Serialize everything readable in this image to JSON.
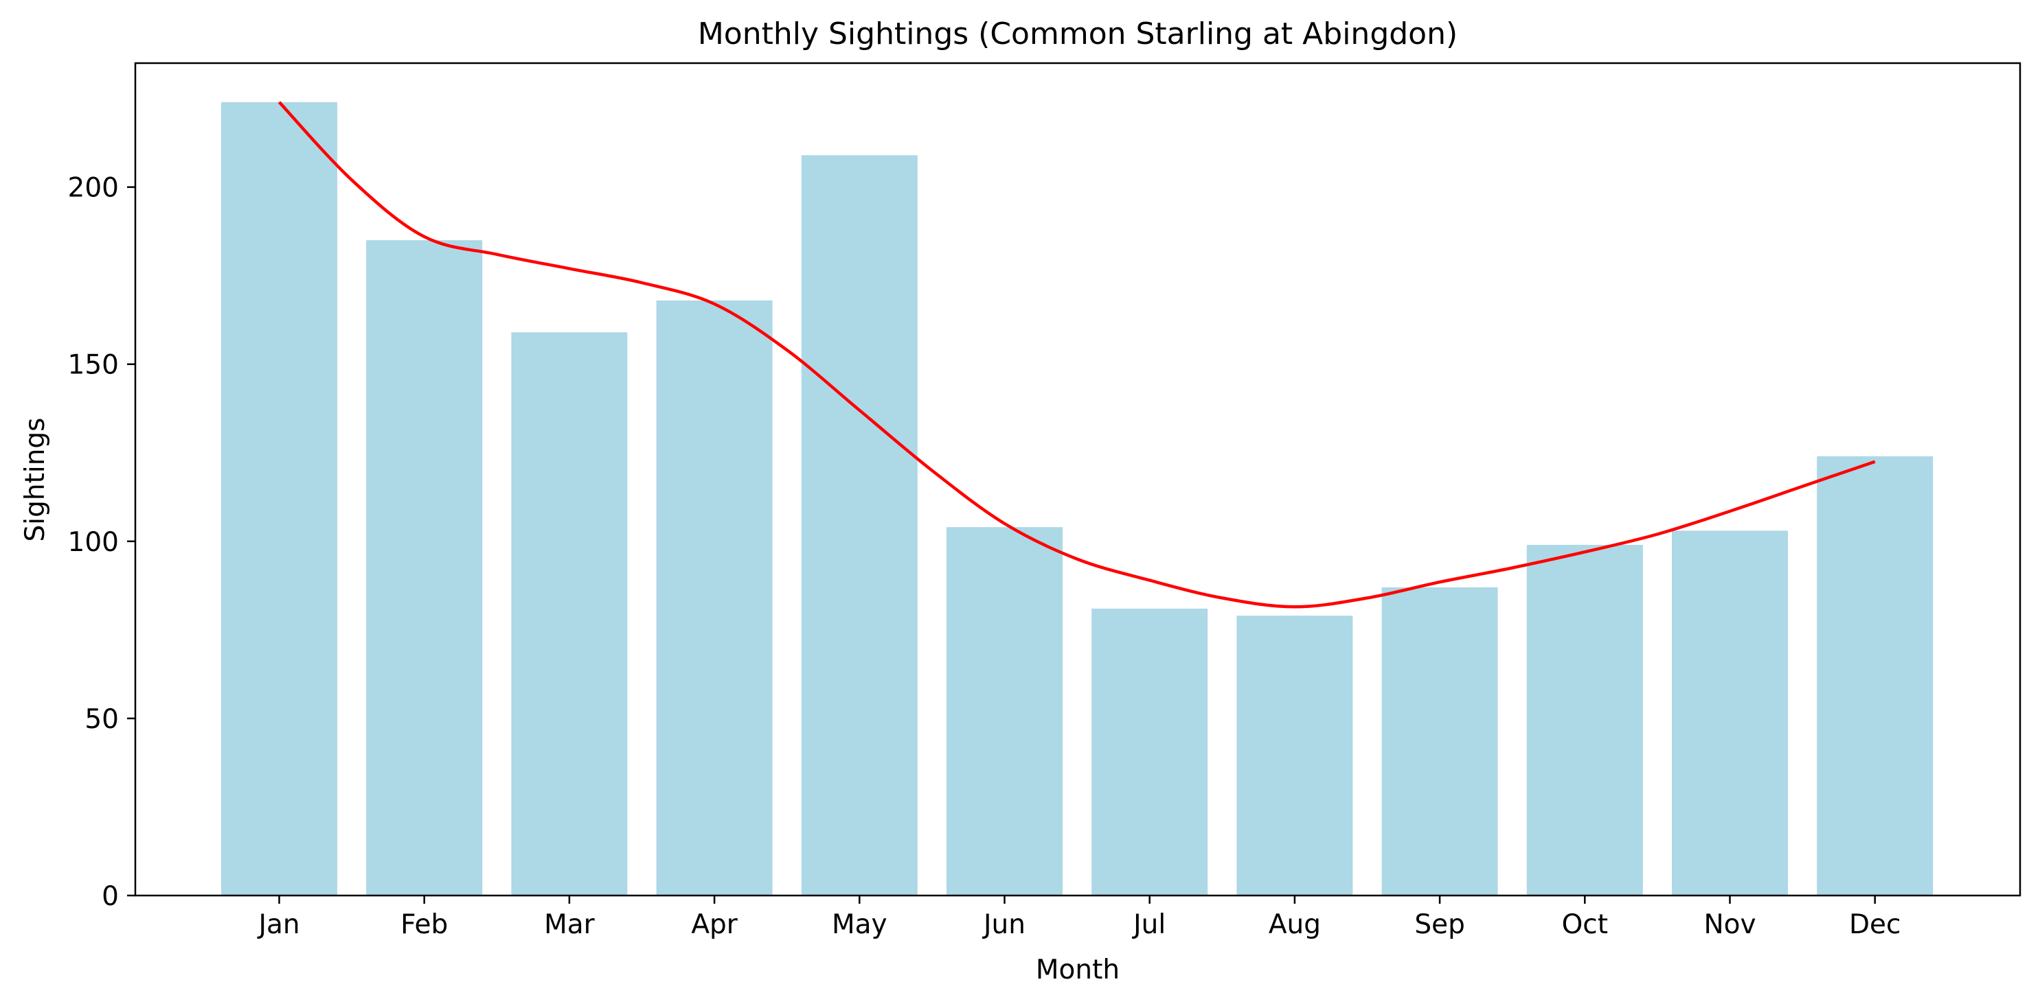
{
  "chart_data": {
    "type": "bar",
    "title": "Monthly Sightings (Common Starling at Abingdon)",
    "xlabel": "Month",
    "ylabel": "Sightings",
    "categories": [
      "Jan",
      "Feb",
      "Mar",
      "Apr",
      "May",
      "Jun",
      "Jul",
      "Aug",
      "Sep",
      "Oct",
      "Nov",
      "Dec"
    ],
    "values": [
      224,
      185,
      159,
      168,
      209,
      104,
      81,
      79,
      87,
      99,
      103,
      124
    ],
    "trend": {
      "x": [
        0,
        0.5,
        1,
        1.5,
        2,
        2.5,
        3,
        3.5,
        4,
        4.5,
        5,
        5.5,
        6,
        6.5,
        7,
        7.5,
        8,
        8.5,
        9,
        9.5,
        10,
        10.5,
        11
      ],
      "y": [
        224,
        202,
        186,
        181,
        177,
        173,
        167,
        154,
        137,
        120,
        105,
        95,
        89,
        84,
        81.5,
        84,
        88.5,
        92.5,
        97,
        102,
        108.5,
        115.5,
        122.5
      ]
    },
    "ylim": [
      0,
      235
    ],
    "yticks": [
      0,
      50,
      100,
      150,
      200
    ],
    "grid": false,
    "colors": {
      "bar": "#add8e6",
      "trend": "#ff0000",
      "axis": "#000000"
    }
  }
}
